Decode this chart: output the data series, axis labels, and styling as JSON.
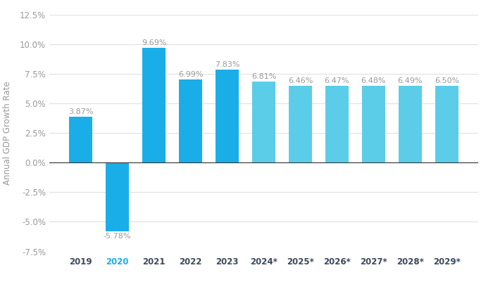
{
  "categories": [
    "2019",
    "2020",
    "2021",
    "2022",
    "2023",
    "2024*",
    "2025*",
    "2026*",
    "2027*",
    "2028*",
    "2029*"
  ],
  "values": [
    3.87,
    -5.78,
    9.69,
    6.99,
    7.83,
    6.81,
    6.46,
    6.47,
    6.48,
    6.49,
    6.5
  ],
  "color_actual": "#1aaee8",
  "color_projected": "#5bcde8",
  "ylabel": "Annual GDP Growth Rate",
  "ylim": [
    -7.5,
    12.5
  ],
  "yticks": [
    -7.5,
    -5.0,
    -2.5,
    0.0,
    2.5,
    5.0,
    7.5,
    10.0,
    12.5
  ],
  "label_fontsize": 8.0,
  "axis_label_fontsize": 8.5,
  "tick_fontsize": 8.5,
  "bar_label_color": "#999999",
  "xtick_color": "#3d4a5c",
  "background_color": "#ffffff",
  "grid_color": "#e0e0e0",
  "zero_line_color": "#333333",
  "x2020_color": "#1aaee8"
}
